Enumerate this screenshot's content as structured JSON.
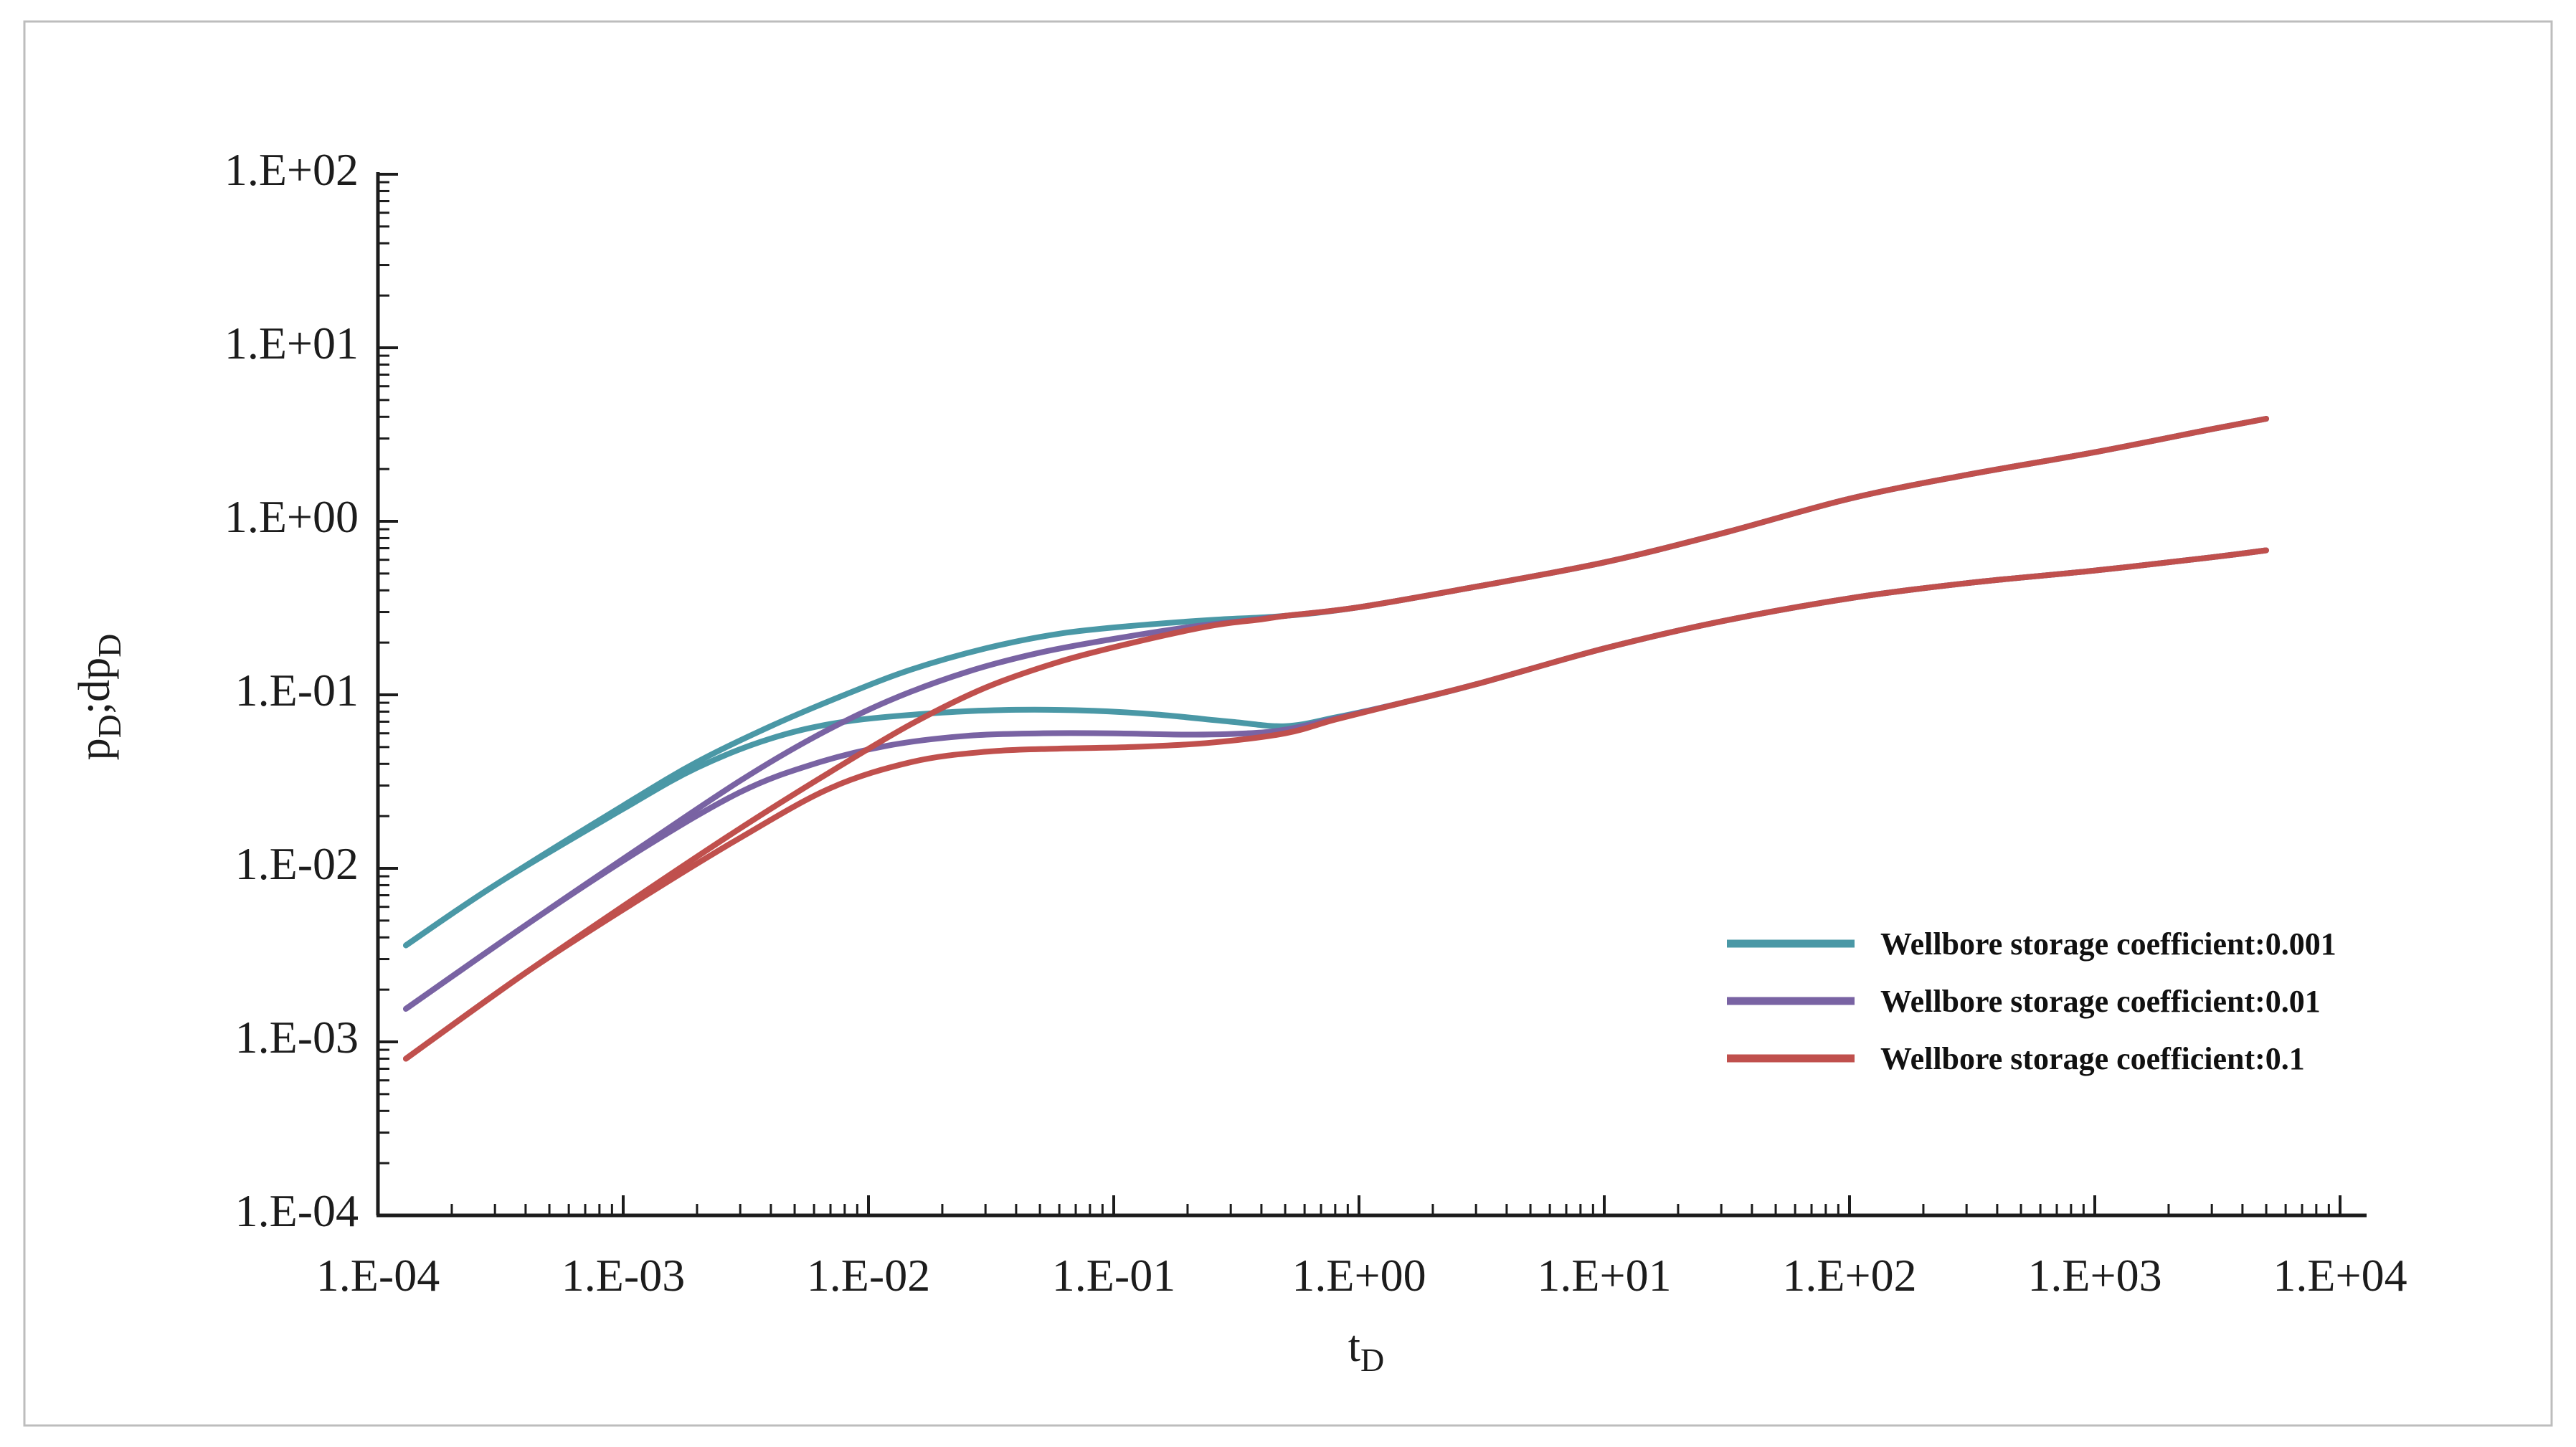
{
  "figure": {
    "background": "#ffffff",
    "border_color": "#bdbdbd"
  },
  "chart_data": {
    "type": "line",
    "title": "",
    "log_x": true,
    "log_y": true,
    "x_axis": {
      "label": "t",
      "label_subscript": "D",
      "exponent_min": -4,
      "exponent_max": 4,
      "tick_labels": [
        "1.E-04",
        "1.E-03",
        "1.E-02",
        "1.E-01",
        "1.E+00",
        "1.E+01",
        "1.E+02",
        "1.E+03",
        "1.E+04"
      ]
    },
    "y_axis": {
      "label_part1": "p",
      "label_sub1": "D",
      "label_part2": ";dp",
      "label_sub2": "D",
      "exponent_min": -4,
      "exponent_max": 2,
      "tick_labels": [
        "1.E+02",
        "1.E+01",
        "1.E+00",
        "1.E-01",
        "1.E-02",
        "1.E-03",
        "1.E-04"
      ]
    },
    "legend": [
      {
        "label": "Wellbore storage coefficient:0.001",
        "color": "#4A98A6"
      },
      {
        "label": "Wellbore storage coefficient:0.01",
        "color": "#7963A3"
      },
      {
        "label": "Wellbore storage coefficient:0.1",
        "color": "#C0504D"
      }
    ],
    "series": [
      {
        "name": "pD-C0.001",
        "role": "pressure",
        "coefficient": 0.001,
        "color": "#4A98A6",
        "points": [
          [
            0.00013,
            0.0036
          ],
          [
            0.0003,
            0.008
          ],
          [
            0.001,
            0.023
          ],
          [
            0.002,
            0.041
          ],
          [
            0.004,
            0.066
          ],
          [
            0.008,
            0.1
          ],
          [
            0.015,
            0.14
          ],
          [
            0.03,
            0.185
          ],
          [
            0.06,
            0.225
          ],
          [
            0.12,
            0.25
          ],
          [
            0.25,
            0.27
          ],
          [
            0.5,
            0.285
          ],
          [
            1,
            0.32
          ],
          [
            3,
            0.42
          ],
          [
            10,
            0.58
          ],
          [
            30,
            0.85
          ],
          [
            100,
            1.35
          ],
          [
            300,
            1.85
          ],
          [
            1000,
            2.5
          ],
          [
            3000,
            3.4
          ],
          [
            5000,
            3.9
          ]
        ]
      },
      {
        "name": "dpD-C0.001",
        "role": "derivative",
        "coefficient": 0.001,
        "color": "#4A98A6",
        "points": [
          [
            0.00013,
            0.0036
          ],
          [
            0.0003,
            0.008
          ],
          [
            0.001,
            0.022
          ],
          [
            0.002,
            0.038
          ],
          [
            0.004,
            0.056
          ],
          [
            0.008,
            0.07
          ],
          [
            0.02,
            0.079
          ],
          [
            0.04,
            0.082
          ],
          [
            0.08,
            0.081
          ],
          [
            0.15,
            0.077
          ],
          [
            0.3,
            0.07
          ],
          [
            0.5,
            0.066
          ],
          [
            0.8,
            0.074
          ],
          [
            1.5,
            0.09
          ],
          [
            3,
            0.115
          ],
          [
            10,
            0.185
          ],
          [
            30,
            0.265
          ],
          [
            100,
            0.36
          ],
          [
            300,
            0.44
          ],
          [
            1000,
            0.52
          ],
          [
            3000,
            0.62
          ],
          [
            5000,
            0.68
          ]
        ]
      },
      {
        "name": "pD-C0.01",
        "role": "pressure",
        "coefficient": 0.01,
        "color": "#7963A3",
        "points": [
          [
            0.00013,
            0.00155
          ],
          [
            0.0004,
            0.0047
          ],
          [
            0.0012,
            0.0135
          ],
          [
            0.003,
            0.032
          ],
          [
            0.006,
            0.057
          ],
          [
            0.012,
            0.092
          ],
          [
            0.025,
            0.135
          ],
          [
            0.05,
            0.175
          ],
          [
            0.1,
            0.21
          ],
          [
            0.2,
            0.245
          ],
          [
            0.35,
            0.268
          ],
          [
            0.5,
            0.285
          ],
          [
            1,
            0.32
          ],
          [
            3,
            0.42
          ],
          [
            10,
            0.58
          ],
          [
            30,
            0.85
          ],
          [
            100,
            1.35
          ],
          [
            300,
            1.85
          ],
          [
            1000,
            2.5
          ],
          [
            3000,
            3.4
          ],
          [
            5000,
            3.9
          ]
        ]
      },
      {
        "name": "dpD-C0.01",
        "role": "derivative",
        "coefficient": 0.01,
        "color": "#7963A3",
        "points": [
          [
            0.00013,
            0.00155
          ],
          [
            0.0004,
            0.0047
          ],
          [
            0.0012,
            0.013
          ],
          [
            0.003,
            0.0275
          ],
          [
            0.006,
            0.04
          ],
          [
            0.012,
            0.051
          ],
          [
            0.025,
            0.058
          ],
          [
            0.05,
            0.06
          ],
          [
            0.1,
            0.06
          ],
          [
            0.2,
            0.059
          ],
          [
            0.35,
            0.06
          ],
          [
            0.5,
            0.063
          ],
          [
            0.8,
            0.073
          ],
          [
            1.5,
            0.09
          ],
          [
            3,
            0.115
          ],
          [
            10,
            0.185
          ],
          [
            30,
            0.265
          ],
          [
            100,
            0.36
          ],
          [
            300,
            0.44
          ],
          [
            1000,
            0.52
          ],
          [
            3000,
            0.62
          ],
          [
            5000,
            0.68
          ]
        ]
      },
      {
        "name": "pD-C0.1",
        "role": "pressure",
        "coefficient": 0.1,
        "color": "#C0504D",
        "points": [
          [
            0.00013,
            0.0008
          ],
          [
            0.0004,
            0.0025
          ],
          [
            0.0012,
            0.0072
          ],
          [
            0.003,
            0.017
          ],
          [
            0.007,
            0.036
          ],
          [
            0.015,
            0.068
          ],
          [
            0.03,
            0.11
          ],
          [
            0.06,
            0.155
          ],
          [
            0.12,
            0.2
          ],
          [
            0.25,
            0.25
          ],
          [
            0.4,
            0.272
          ],
          [
            0.5,
            0.285
          ],
          [
            1,
            0.32
          ],
          [
            3,
            0.42
          ],
          [
            10,
            0.58
          ],
          [
            30,
            0.85
          ],
          [
            100,
            1.35
          ],
          [
            300,
            1.85
          ],
          [
            1000,
            2.5
          ],
          [
            3000,
            3.4
          ],
          [
            5000,
            3.9
          ]
        ]
      },
      {
        "name": "dpD-C0.1",
        "role": "derivative",
        "coefficient": 0.1,
        "color": "#C0504D",
        "points": [
          [
            0.00013,
            0.0008
          ],
          [
            0.0004,
            0.0025
          ],
          [
            0.0012,
            0.0068
          ],
          [
            0.003,
            0.015
          ],
          [
            0.007,
            0.029
          ],
          [
            0.015,
            0.041
          ],
          [
            0.03,
            0.047
          ],
          [
            0.06,
            0.049
          ],
          [
            0.12,
            0.05
          ],
          [
            0.25,
            0.053
          ],
          [
            0.5,
            0.06
          ],
          [
            0.8,
            0.072
          ],
          [
            1.5,
            0.09
          ],
          [
            3,
            0.115
          ],
          [
            10,
            0.185
          ],
          [
            30,
            0.265
          ],
          [
            100,
            0.36
          ],
          [
            300,
            0.44
          ],
          [
            1000,
            0.52
          ],
          [
            3000,
            0.62
          ],
          [
            5000,
            0.68
          ]
        ]
      }
    ]
  }
}
